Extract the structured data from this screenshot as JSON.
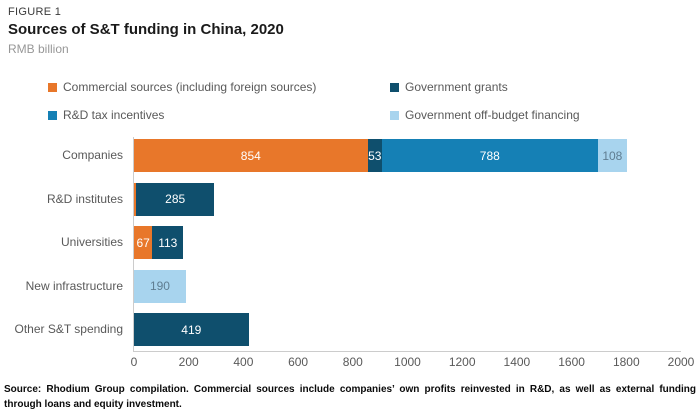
{
  "header": {
    "figure_label": "FIGURE 1",
    "title": "Sources of S&T funding in China, 2020",
    "unit": "RMB billion"
  },
  "footer": {
    "source_note": "Source: Rhodium Group compilation. Commercial sources include companies’ own profits reinvested in R&D, as well as external funding through loans and equity investment."
  },
  "colors": {
    "commercial": "#E8772A",
    "government_grants": "#0F4F6D",
    "rd_tax_incentives": "#1580B5",
    "government_off_budget": "#A8D4EE",
    "value_text_on_light": "#5F7D91",
    "value_text_on_dark": "#FFFFFF",
    "axis_line": "#CCCCCC",
    "text_gray": "#595959"
  },
  "chart_data": {
    "type": "bar",
    "orientation": "horizontal-stacked",
    "title": "Sources of S&T funding in China, 2020",
    "unit": "RMB billion",
    "xlim": [
      0,
      2000
    ],
    "xticks": [
      0,
      200,
      400,
      600,
      800,
      1000,
      1200,
      1400,
      1600,
      1800,
      2000
    ],
    "grid": false,
    "legend_position": "top",
    "legend": [
      {
        "name": "Commercial sources (including foreign sources)",
        "series": "commercial"
      },
      {
        "name": "Government grants",
        "series": "government_grants"
      },
      {
        "name": "R&D tax incentives",
        "series": "rd_tax_incentives"
      },
      {
        "name": "Government off-budget financing",
        "series": "government_off_budget"
      }
    ],
    "categories": [
      "Companies",
      "R&D institutes",
      "Universities",
      "New infrastructure",
      "Other S&T spending"
    ],
    "rows": [
      {
        "label": "Companies",
        "segments": [
          {
            "series": "commercial",
            "value": 854,
            "label": "854"
          },
          {
            "series": "government_grants",
            "value": 53,
            "label": "53"
          },
          {
            "series": "rd_tax_incentives",
            "value": 788,
            "label": "788"
          },
          {
            "series": "government_off_budget",
            "value": 108,
            "label": "108"
          }
        ]
      },
      {
        "label": "R&D institutes",
        "segments": [
          {
            "series": "commercial",
            "value": 8,
            "label": ""
          },
          {
            "series": "government_grants",
            "value": 285,
            "label": "285"
          }
        ]
      },
      {
        "label": "Universities",
        "segments": [
          {
            "series": "commercial",
            "value": 67,
            "label": "67"
          },
          {
            "series": "government_grants",
            "value": 113,
            "label": "113"
          }
        ]
      },
      {
        "label": "New infrastructure",
        "segments": [
          {
            "series": "government_off_budget",
            "value": 190,
            "label": "190"
          }
        ]
      },
      {
        "label": "Other S&T spending",
        "segments": [
          {
            "series": "government_grants",
            "value": 419,
            "label": "419"
          }
        ]
      }
    ]
  }
}
